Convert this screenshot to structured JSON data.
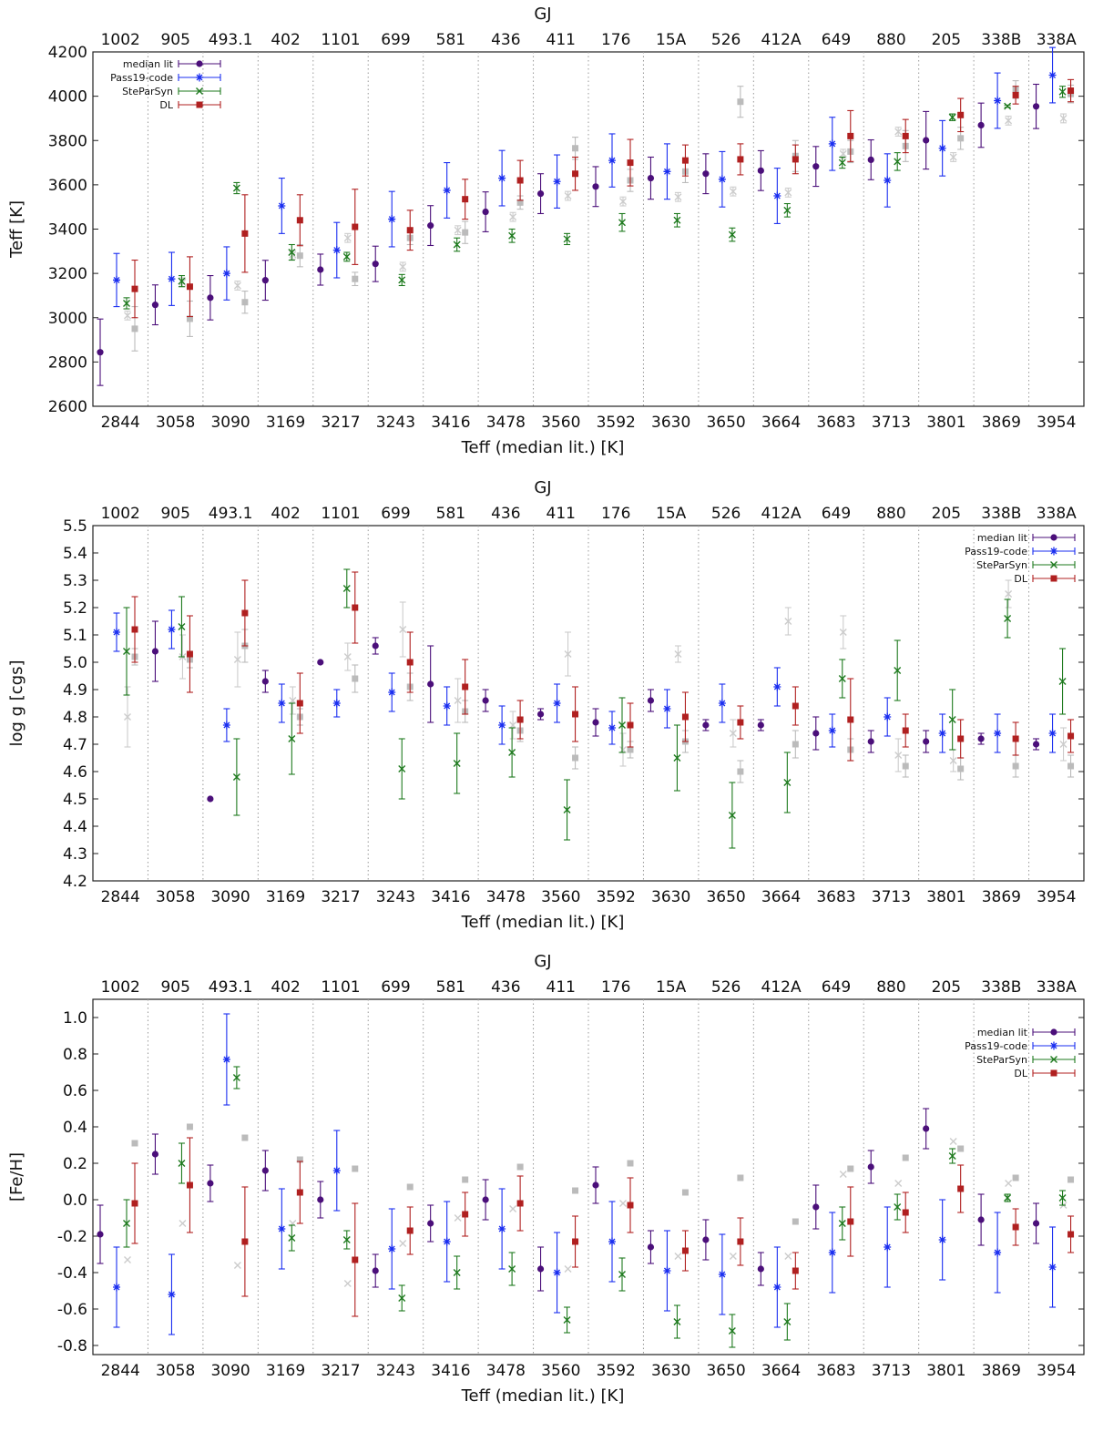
{
  "chart_data": [
    {
      "type": "scatter",
      "panel": "teff",
      "xlabel": "Teff (median lit.) [K]",
      "ylabel": "Teff [K]",
      "top_axis_label": "GJ",
      "ylim": [
        2600,
        4200
      ],
      "yticks": [
        "2600",
        "2800",
        "3000",
        "3200",
        "3400",
        "3600",
        "3800",
        "4000",
        "4200"
      ],
      "legend_position": "top-left",
      "series": [
        {
          "name": "median lit",
          "color": "#4b0f7a",
          "marker": "circle",
          "values": [
            2844,
            3058,
            3090,
            3169,
            3217,
            3243,
            3416,
            3478,
            3560,
            3592,
            3630,
            3650,
            3664,
            3683,
            3713,
            3801,
            3869,
            3954
          ],
          "err": [
            150,
            90,
            100,
            90,
            70,
            80,
            90,
            90,
            90,
            90,
            95,
            90,
            90,
            90,
            90,
            130,
            100,
            100
          ]
        },
        {
          "name": "Pass19-code",
          "color": "#1a2ef0",
          "marker": "asterisk",
          "values": [
            3170,
            3175,
            3200,
            3505,
            3305,
            3445,
            3575,
            3630,
            3615,
            3710,
            3660,
            3625,
            3550,
            3785,
            3620,
            3765,
            3980,
            4095
          ],
          "err": [
            120,
            120,
            120,
            125,
            125,
            125,
            125,
            125,
            120,
            120,
            125,
            125,
            125,
            120,
            120,
            125,
            125,
            125
          ]
        },
        {
          "name": "SteParSyn",
          "color": "#1e7a1e",
          "marker": "cross",
          "values": [
            3065,
            3165,
            3585,
            3295,
            3275,
            3170,
            3330,
            3370,
            3355,
            3430,
            3440,
            3375,
            3485,
            3700,
            3705,
            3905,
            3955,
            4020
          ],
          "err": [
            25,
            25,
            25,
            35,
            20,
            25,
            30,
            30,
            25,
            40,
            30,
            30,
            30,
            25,
            40,
            15,
            5,
            25
          ]
        },
        {
          "name": "DL",
          "color": "#b02020",
          "marker": "square",
          "values": [
            3130,
            3140,
            3380,
            3440,
            3410,
            3395,
            3535,
            3620,
            3650,
            3700,
            3710,
            3715,
            3715,
            3820,
            3820,
            3915,
            4005,
            4025
          ],
          "err": [
            130,
            135,
            175,
            115,
            170,
            90,
            90,
            90,
            75,
            105,
            70,
            70,
            65,
            115,
            75,
            75,
            40,
            50
          ]
        },
        {
          "name": "",
          "color": "#bbbbbb",
          "marker": "square",
          "values": [
            2950,
            2995,
            3070,
            3280,
            3175,
            3360,
            3385,
            3520,
            3765,
            3620,
            3660,
            3975,
            3730,
            3750,
            3775,
            3810,
            4030,
            4010
          ],
          "err": [
            100,
            80,
            50,
            50,
            30,
            30,
            50,
            30,
            50,
            50,
            50,
            70,
            70,
            50,
            70,
            50,
            40,
            40
          ]
        },
        {
          "name": "",
          "color": "#cccccc",
          "marker": "cross",
          "values": [
            3010,
            3160,
            3145,
            3285,
            3360,
            3230,
            3395,
            3455,
            3550,
            3525,
            3545,
            3570,
            3565,
            3740,
            3840,
            3725,
            3890,
            3900
          ],
          "err": [
            20,
            20,
            20,
            20,
            20,
            20,
            20,
            20,
            20,
            20,
            20,
            20,
            20,
            20,
            20,
            20,
            20,
            20
          ]
        }
      ]
    },
    {
      "type": "scatter",
      "panel": "logg",
      "xlabel": "Teff (median lit.) [K]",
      "ylabel": "log g [cgs]",
      "top_axis_label": "GJ",
      "ylim": [
        4.2,
        5.5
      ],
      "yticks": [
        "4.2",
        "4.3",
        "4.4",
        "4.5",
        "4.6",
        "4.7",
        "4.8",
        "4.9",
        "5.0",
        "5.1",
        "5.2",
        "5.3",
        "5.4",
        "5.5"
      ],
      "legend_position": "top-right",
      "series": [
        {
          "name": "median lit",
          "color": "#4b0f7a",
          "marker": "circle",
          "values": [
            null,
            5.04,
            4.5,
            4.93,
            5.0,
            5.06,
            4.92,
            4.86,
            4.81,
            4.78,
            4.86,
            4.77,
            4.77,
            4.74,
            4.71,
            4.71,
            4.72,
            4.7
          ],
          "err": [
            0,
            0.11,
            0,
            0.04,
            0,
            0.03,
            0.14,
            0.04,
            0.02,
            0.05,
            0.04,
            0.02,
            0.02,
            0.06,
            0.04,
            0.04,
            0.02,
            0.02
          ]
        },
        {
          "name": "Pass19-code",
          "color": "#1a2ef0",
          "marker": "asterisk",
          "values": [
            5.11,
            5.12,
            4.77,
            4.85,
            4.85,
            4.89,
            4.84,
            4.77,
            4.85,
            4.76,
            4.83,
            4.85,
            4.91,
            4.75,
            4.8,
            4.74,
            4.74,
            4.74
          ],
          "err": [
            0.07,
            0.07,
            0.06,
            0.07,
            0.05,
            0.07,
            0.07,
            0.07,
            0.07,
            0.06,
            0.07,
            0.07,
            0.07,
            0.06,
            0.07,
            0.07,
            0.07,
            0.07
          ]
        },
        {
          "name": "SteParSyn",
          "color": "#1e7a1e",
          "marker": "cross",
          "values": [
            5.04,
            5.13,
            4.58,
            4.72,
            5.27,
            4.61,
            4.63,
            4.67,
            4.46,
            4.77,
            4.65,
            4.44,
            4.56,
            4.94,
            4.97,
            4.79,
            5.16,
            4.93
          ],
          "err": [
            0.16,
            0.11,
            0.14,
            0.13,
            0.07,
            0.11,
            0.11,
            0.09,
            0.11,
            0.1,
            0.12,
            0.12,
            0.11,
            0.07,
            0.11,
            0.11,
            0.07,
            0.12
          ]
        },
        {
          "name": "DL",
          "color": "#b02020",
          "marker": "square",
          "values": [
            5.12,
            5.03,
            5.18,
            4.85,
            5.2,
            5.0,
            4.91,
            4.79,
            4.81,
            4.77,
            4.8,
            4.78,
            4.84,
            4.79,
            4.75,
            4.72,
            4.72,
            4.73
          ],
          "err": [
            0.12,
            0.14,
            0.12,
            0.11,
            0.13,
            0.11,
            0.1,
            0.07,
            0.1,
            0.08,
            0.09,
            0.06,
            0.07,
            0.15,
            0.06,
            0.07,
            0.06,
            0.06
          ]
        },
        {
          "name": "",
          "color": "#bbbbbb",
          "marker": "square",
          "values": [
            5.02,
            5.01,
            5.06,
            4.8,
            4.94,
            4.91,
            4.82,
            4.75,
            4.65,
            4.68,
            4.71,
            4.6,
            4.7,
            4.68,
            4.62,
            4.61,
            4.62,
            4.62
          ],
          "err": [
            0.03,
            0.03,
            0.06,
            0.03,
            0.05,
            0.05,
            0.04,
            0.04,
            0.04,
            0.03,
            0.04,
            0.04,
            0.05,
            0.04,
            0.04,
            0.04,
            0.04,
            0.04
          ]
        },
        {
          "name": "",
          "color": "#cccccc",
          "marker": "cross",
          "values": [
            4.8,
            5.02,
            5.01,
            4.86,
            5.02,
            5.12,
            4.86,
            4.77,
            5.03,
            4.68,
            5.03,
            4.74,
            5.15,
            5.11,
            4.66,
            4.64,
            5.25,
            4.7
          ],
          "err": [
            0.11,
            0.08,
            0.1,
            0.05,
            0.05,
            0.1,
            0.08,
            0.05,
            0.08,
            0.06,
            0.03,
            0.05,
            0.05,
            0.06,
            0.06,
            0.04,
            0.05,
            0.06
          ]
        }
      ]
    },
    {
      "type": "scatter",
      "panel": "feh",
      "xlabel": "Teff (median lit.) [K]",
      "ylabel": "[Fe/H]",
      "top_axis_label": "GJ",
      "ylim": [
        -0.85,
        1.1
      ],
      "yticks": [
        "-0.8",
        "-0.6",
        "-0.4",
        "-0.2",
        "0.0",
        "0.2",
        "0.4",
        "0.6",
        "0.8",
        "1.0"
      ],
      "legend_position": "top-right",
      "series": [
        {
          "name": "median lit",
          "color": "#4b0f7a",
          "marker": "circle",
          "values": [
            -0.19,
            0.25,
            0.09,
            0.16,
            0.0,
            -0.39,
            -0.13,
            0.0,
            -0.38,
            0.08,
            -0.26,
            -0.22,
            -0.38,
            -0.04,
            0.18,
            0.39,
            -0.11,
            -0.13
          ],
          "err": [
            0.16,
            0.11,
            0.1,
            0.11,
            0.1,
            0.09,
            0.1,
            0.11,
            0.12,
            0.1,
            0.09,
            0.11,
            0.09,
            0.12,
            0.09,
            0.11,
            0.14,
            0.11
          ]
        },
        {
          "name": "Pass19-code",
          "color": "#1a2ef0",
          "marker": "asterisk",
          "values": [
            -0.48,
            -0.52,
            0.77,
            -0.16,
            0.16,
            -0.27,
            -0.23,
            -0.16,
            -0.4,
            -0.23,
            -0.39,
            -0.41,
            -0.48,
            -0.29,
            -0.26,
            -0.22,
            -0.29,
            -0.37
          ],
          "err": [
            0.22,
            0.22,
            0.25,
            0.22,
            0.22,
            0.22,
            0.22,
            0.22,
            0.22,
            0.22,
            0.22,
            0.22,
            0.22,
            0.22,
            0.22,
            0.22,
            0.22,
            0.22
          ]
        },
        {
          "name": "SteParSyn",
          "color": "#1e7a1e",
          "marker": "cross",
          "values": [
            -0.13,
            0.2,
            0.67,
            -0.21,
            -0.22,
            -0.54,
            -0.4,
            -0.38,
            -0.66,
            -0.41,
            -0.67,
            -0.72,
            -0.67,
            -0.13,
            -0.04,
            0.24,
            0.01,
            0.01
          ],
          "err": [
            0.13,
            0.11,
            0.06,
            0.07,
            0.05,
            0.07,
            0.09,
            0.09,
            0.07,
            0.09,
            0.09,
            0.09,
            0.1,
            0.09,
            0.07,
            0.04,
            0.02,
            0.04
          ]
        },
        {
          "name": "DL",
          "color": "#b02020",
          "marker": "square",
          "values": [
            -0.02,
            0.08,
            -0.23,
            0.04,
            -0.33,
            -0.17,
            -0.08,
            -0.02,
            -0.23,
            -0.03,
            -0.28,
            -0.23,
            -0.39,
            -0.12,
            -0.07,
            0.06,
            -0.15,
            -0.19
          ],
          "err": [
            0.22,
            0.26,
            0.3,
            0.17,
            0.31,
            0.13,
            0.12,
            0.15,
            0.14,
            0.15,
            0.11,
            0.13,
            0.1,
            0.19,
            0.11,
            0.13,
            0.1,
            0.1
          ]
        },
        {
          "name": "",
          "color": "#bbbbbb",
          "marker": "square",
          "values": [
            0.31,
            0.4,
            0.34,
            0.22,
            0.17,
            0.07,
            0.11,
            0.18,
            0.05,
            0.2,
            0.04,
            0.12,
            -0.12,
            0.17,
            0.23,
            0.28,
            0.12,
            0.11
          ]
        },
        {
          "name": "",
          "color": "#cccccc",
          "marker": "cross",
          "values": [
            -0.33,
            -0.13,
            -0.36,
            -0.13,
            -0.46,
            -0.24,
            -0.1,
            -0.05,
            -0.38,
            -0.02,
            -0.31,
            -0.31,
            -0.31,
            0.14,
            0.09,
            0.32,
            0.09,
            -0.03
          ]
        }
      ]
    }
  ],
  "x_tick_labels": [
    "2844",
    "3058",
    "3090",
    "3169",
    "3217",
    "3243",
    "3416",
    "3478",
    "3560",
    "3592",
    "3630",
    "3650",
    "3664",
    "3683",
    "3713",
    "3801",
    "3869",
    "3954"
  ],
  "top_tick_labels": [
    "1002",
    "905",
    "493.1",
    "402",
    "1101",
    "699",
    "581",
    "436",
    "411",
    "176",
    "15A",
    "526",
    "412A",
    "649",
    "880",
    "205",
    "338B",
    "338A"
  ]
}
